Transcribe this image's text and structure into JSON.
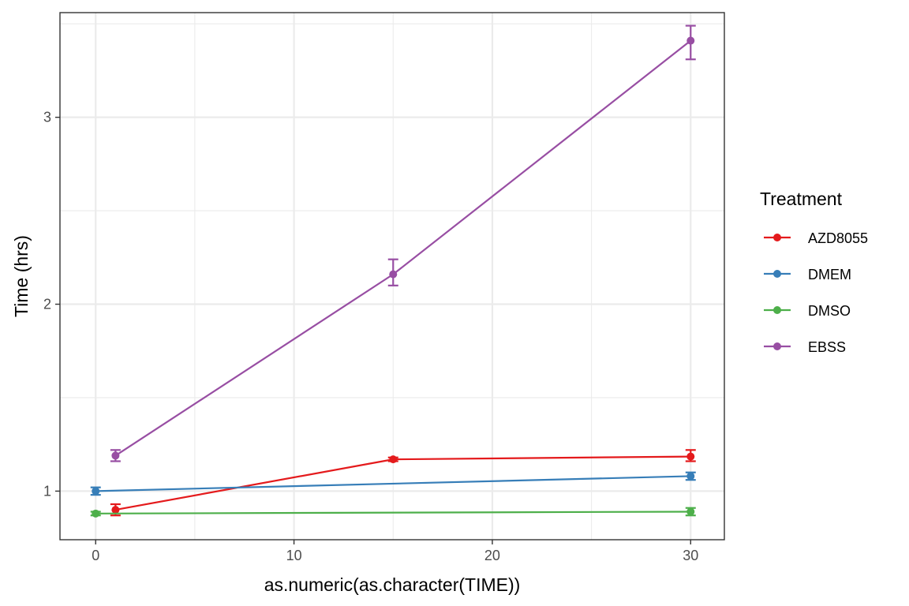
{
  "chart_data": {
    "type": "line",
    "xlabel": "as.numeric(as.character(TIME))",
    "ylabel": "Time (hrs)",
    "xlim": [
      -1.8,
      31.7
    ],
    "ylim": [
      0.74,
      3.56
    ],
    "x_ticks": [
      0,
      10,
      20,
      30
    ],
    "x_minor_ticks": [
      5,
      15,
      25
    ],
    "y_ticks": [
      1,
      2,
      3
    ],
    "y_minor_ticks": [
      1.5,
      2.5,
      3.5
    ],
    "grid": true,
    "legend": {
      "title": "Treatment",
      "position": "right"
    },
    "series": [
      {
        "name": "AZD8055",
        "color": "#e41a1c",
        "points": [
          {
            "x": 1,
            "y": 0.9,
            "ymin": 0.87,
            "ymax": 0.93
          },
          {
            "x": 15,
            "y": 1.17,
            "ymin": 1.16,
            "ymax": 1.18
          },
          {
            "x": 30,
            "y": 1.185,
            "ymin": 1.16,
            "ymax": 1.22
          }
        ]
      },
      {
        "name": "DMEM",
        "color": "#377eb8",
        "points": [
          {
            "x": 0,
            "y": 1.0,
            "ymin": 0.98,
            "ymax": 1.02
          },
          {
            "x": 30,
            "y": 1.08,
            "ymin": 1.06,
            "ymax": 1.1
          }
        ]
      },
      {
        "name": "DMSO",
        "color": "#4daf4a",
        "points": [
          {
            "x": 0,
            "y": 0.88,
            "ymin": 0.87,
            "ymax": 0.89
          },
          {
            "x": 30,
            "y": 0.89,
            "ymin": 0.87,
            "ymax": 0.91
          }
        ]
      },
      {
        "name": "EBSS",
        "color": "#984ea3",
        "points": [
          {
            "x": 1,
            "y": 1.19,
            "ymin": 1.16,
            "ymax": 1.22
          },
          {
            "x": 15,
            "y": 2.16,
            "ymin": 2.1,
            "ymax": 2.24
          },
          {
            "x": 30,
            "y": 3.41,
            "ymin": 3.31,
            "ymax": 3.49
          }
        ]
      }
    ]
  }
}
